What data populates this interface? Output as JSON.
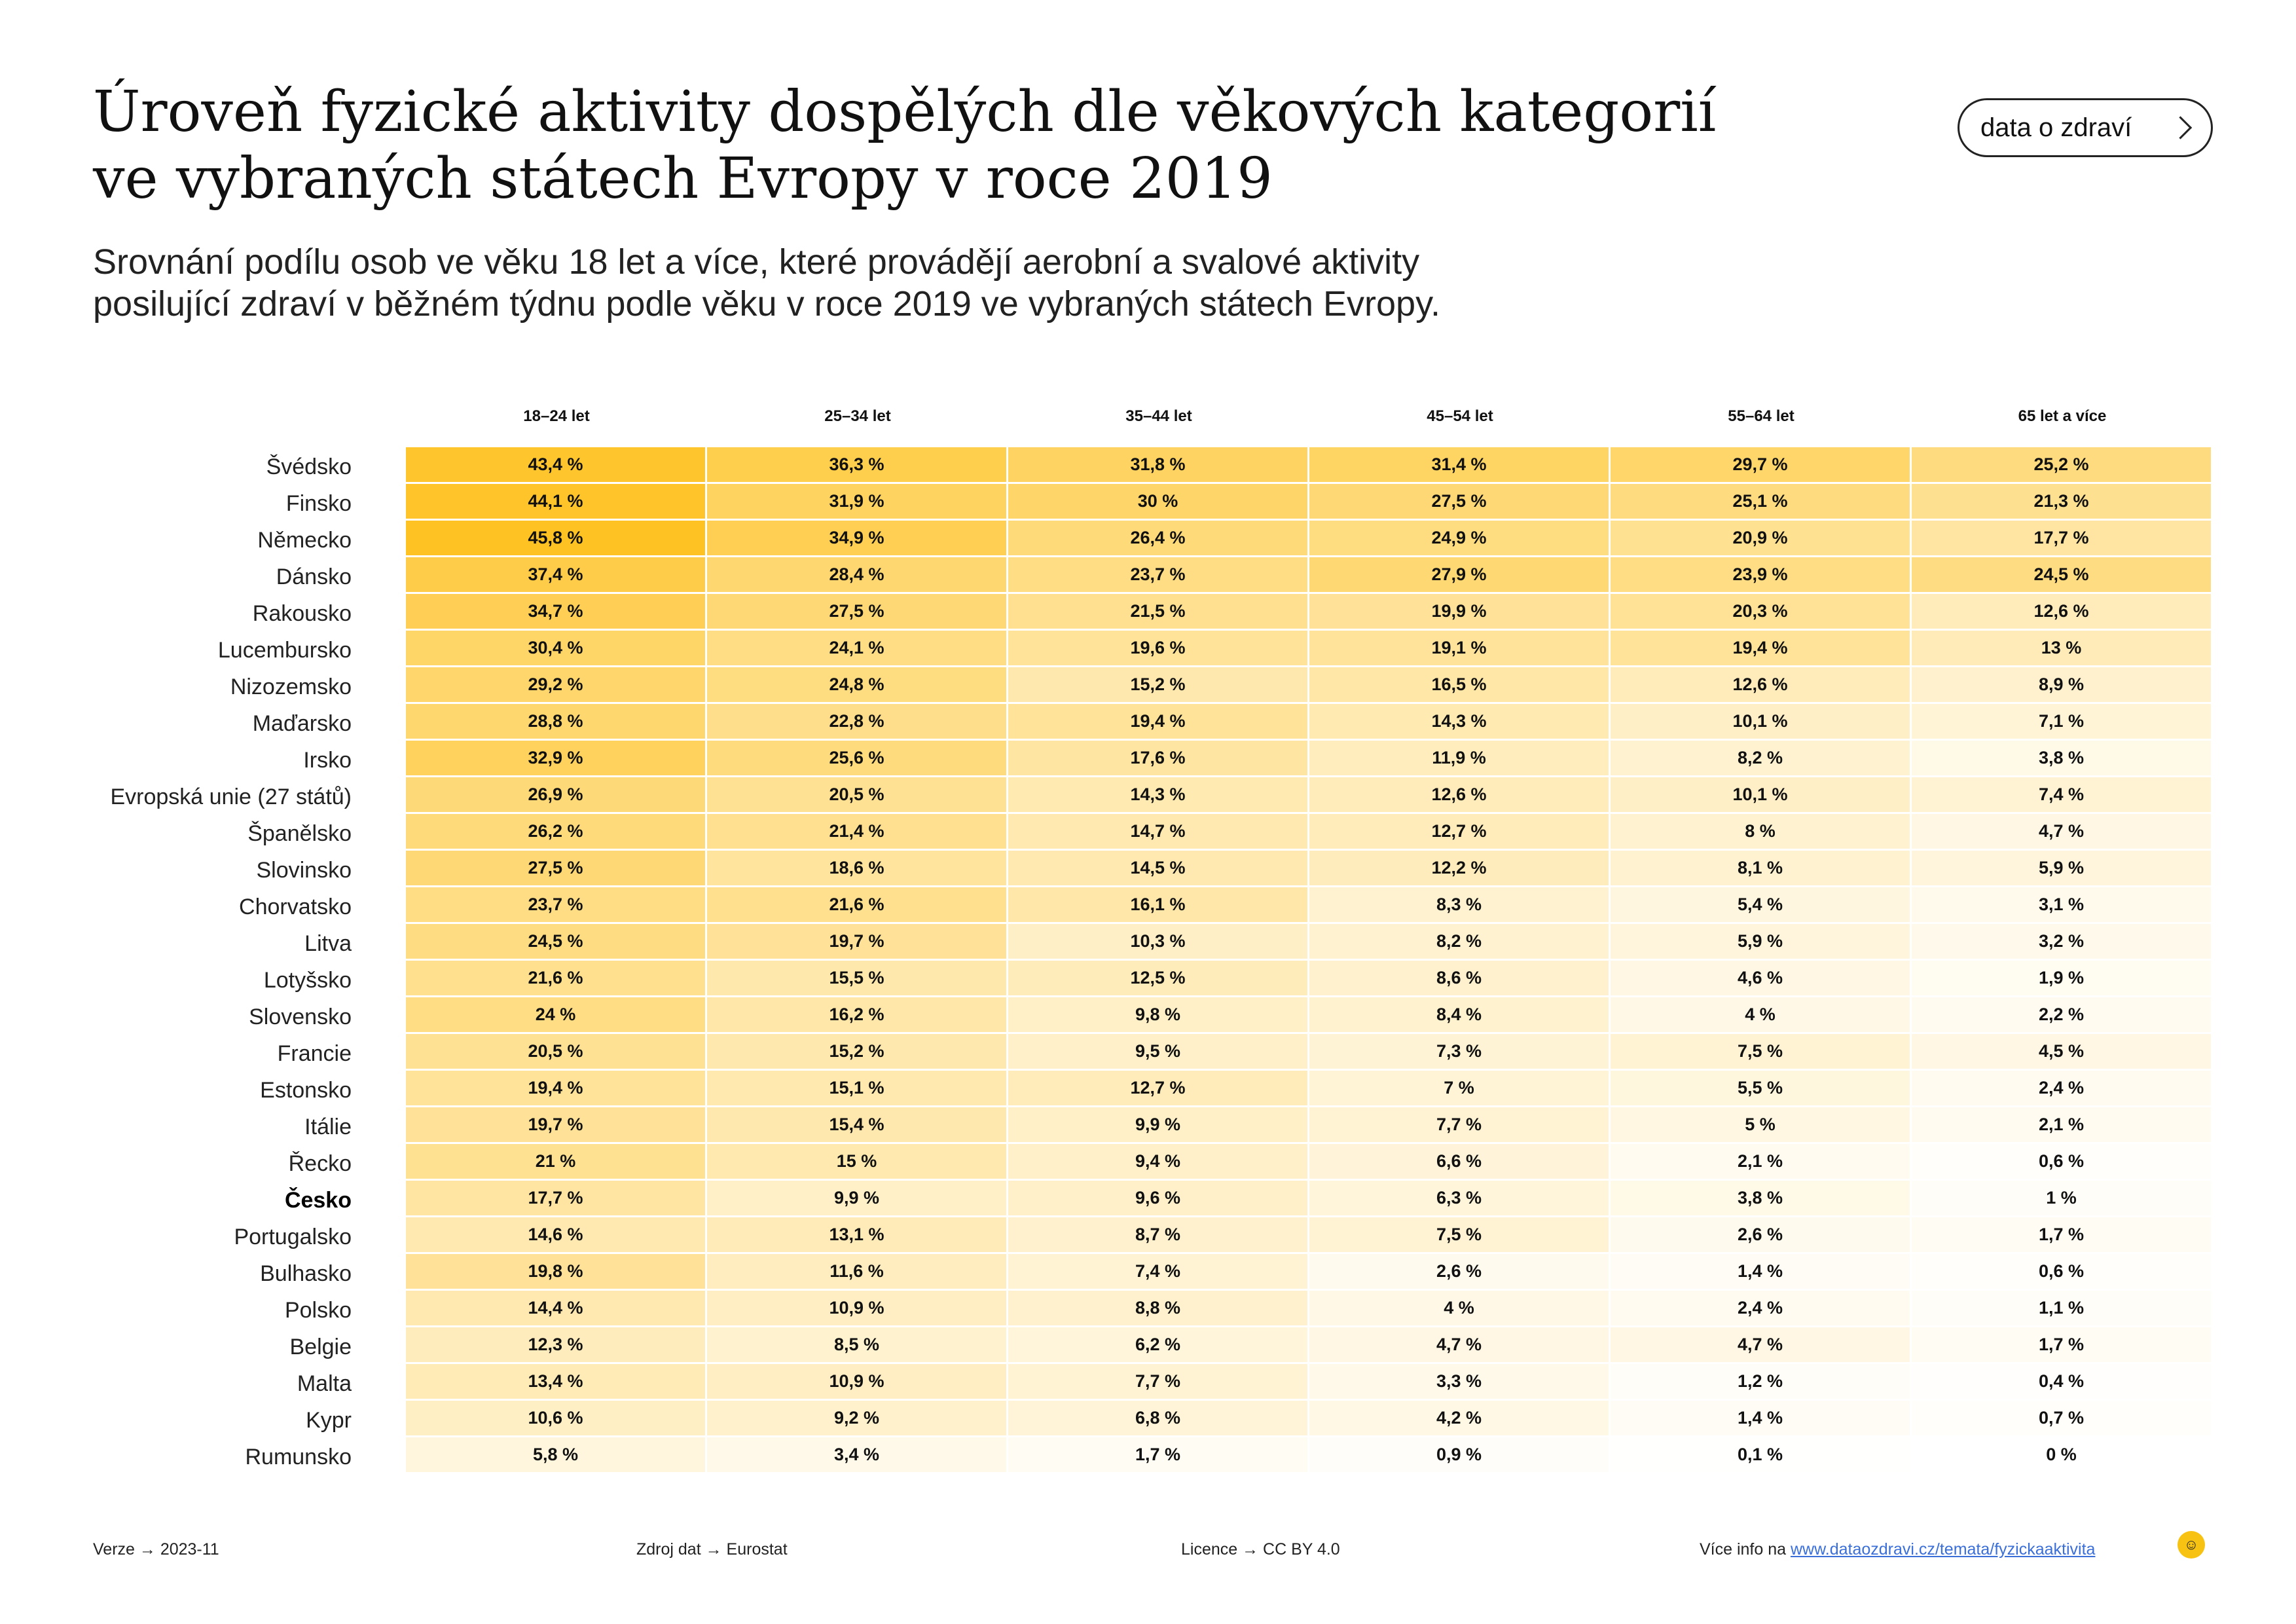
{
  "header": {
    "title_lines": [
      "Úroveň fyzické aktivity dospělých dle věkových kategorií",
      "ve vybraných státech Evropy v roce 2019"
    ],
    "subtitle_lines": [
      "Srovnání podílu osob ve věku 18 let a více, které provádějí aerobní a svalové aktivity",
      "posilující zdraví v běžném týdnu podle věku v roce 2019 ve vybraných státech Evropy."
    ],
    "badge_label": "data o zdraví",
    "badge_icon": "chevron-right-icon"
  },
  "chart_data": {
    "type": "heatmap",
    "title": "Úroveň fyzické aktivity dospělých dle věkových kategorií ve vybraných státech Evropy v roce 2019",
    "columns": [
      "18–24 let",
      "25–34 let",
      "35–44 let",
      "45–54 let",
      "55–64 let",
      "65 let a více"
    ],
    "unit": "%",
    "highlight_row": "Česko",
    "color_scale": {
      "low": "#ffffff",
      "high": "#fec223"
    },
    "rows": [
      {
        "label": "Švédsko",
        "values": [
          43.4,
          36.3,
          31.8,
          31.4,
          29.7,
          25.2
        ],
        "texts": [
          "43,4 %",
          "36,3 %",
          "31,8 %",
          "31,4 %",
          "29,7 %",
          "25,2 %"
        ]
      },
      {
        "label": "Finsko",
        "values": [
          44.1,
          31.9,
          30,
          27.5,
          25.1,
          21.3
        ],
        "texts": [
          "44,1 %",
          "31,9 %",
          "30 %",
          "27,5 %",
          "25,1 %",
          "21,3 %"
        ]
      },
      {
        "label": "Německo",
        "values": [
          45.8,
          34.9,
          26.4,
          24.9,
          20.9,
          17.7
        ],
        "texts": [
          "45,8 %",
          "34,9 %",
          "26,4 %",
          "24,9 %",
          "20,9 %",
          "17,7 %"
        ]
      },
      {
        "label": "Dánsko",
        "values": [
          37.4,
          28.4,
          23.7,
          27.9,
          23.9,
          24.5
        ],
        "texts": [
          "37,4 %",
          "28,4 %",
          "23,7 %",
          "27,9 %",
          "23,9 %",
          "24,5 %"
        ]
      },
      {
        "label": "Rakousko",
        "values": [
          34.7,
          27.5,
          21.5,
          19.9,
          20.3,
          12.6
        ],
        "texts": [
          "34,7 %",
          "27,5 %",
          "21,5 %",
          "19,9 %",
          "20,3 %",
          "12,6 %"
        ]
      },
      {
        "label": "Lucembursko",
        "values": [
          30.4,
          24.1,
          19.6,
          19.1,
          19.4,
          13
        ],
        "texts": [
          "30,4 %",
          "24,1 %",
          "19,6 %",
          "19,1 %",
          "19,4 %",
          "13 %"
        ]
      },
      {
        "label": "Nizozemsko",
        "values": [
          29.2,
          24.8,
          15.2,
          16.5,
          12.6,
          8.9
        ],
        "texts": [
          "29,2 %",
          "24,8 %",
          "15,2 %",
          "16,5 %",
          "12,6 %",
          "8,9 %"
        ]
      },
      {
        "label": "Maďarsko",
        "values": [
          28.8,
          22.8,
          19.4,
          14.3,
          10.1,
          7.1
        ],
        "texts": [
          "28,8 %",
          "22,8 %",
          "19,4 %",
          "14,3 %",
          "10,1 %",
          "7,1 %"
        ]
      },
      {
        "label": "Irsko",
        "values": [
          32.9,
          25.6,
          17.6,
          11.9,
          8.2,
          3.8
        ],
        "texts": [
          "32,9 %",
          "25,6 %",
          "17,6 %",
          "11,9 %",
          "8,2 %",
          "3,8 %"
        ]
      },
      {
        "label": "Evropská unie (27 států)",
        "values": [
          26.9,
          20.5,
          14.3,
          12.6,
          10.1,
          7.4
        ],
        "texts": [
          "26,9 %",
          "20,5 %",
          "14,3 %",
          "12,6 %",
          "10,1 %",
          "7,4 %"
        ]
      },
      {
        "label": "Španělsko",
        "values": [
          26.2,
          21.4,
          14.7,
          12.7,
          8,
          4.7
        ],
        "texts": [
          "26,2 %",
          "21,4 %",
          "14,7 %",
          "12,7 %",
          "8 %",
          "4,7 %"
        ]
      },
      {
        "label": "Slovinsko",
        "values": [
          27.5,
          18.6,
          14.5,
          12.2,
          8.1,
          5.9
        ],
        "texts": [
          "27,5 %",
          "18,6 %",
          "14,5 %",
          "12,2 %",
          "8,1 %",
          "5,9 %"
        ]
      },
      {
        "label": "Chorvatsko",
        "values": [
          23.7,
          21.6,
          16.1,
          8.3,
          5.4,
          3.1
        ],
        "texts": [
          "23,7 %",
          "21,6 %",
          "16,1 %",
          "8,3 %",
          "5,4 %",
          "3,1 %"
        ]
      },
      {
        "label": "Litva",
        "values": [
          24.5,
          19.7,
          10.3,
          8.2,
          5.9,
          3.2
        ],
        "texts": [
          "24,5 %",
          "19,7 %",
          "10,3 %",
          "8,2 %",
          "5,9 %",
          "3,2 %"
        ]
      },
      {
        "label": "Lotyšsko",
        "values": [
          21.6,
          15.5,
          12.5,
          8.6,
          4.6,
          1.9
        ],
        "texts": [
          "21,6 %",
          "15,5 %",
          "12,5 %",
          "8,6 %",
          "4,6 %",
          "1,9 %"
        ]
      },
      {
        "label": "Slovensko",
        "values": [
          24,
          16.2,
          9.8,
          8.4,
          4,
          2.2
        ],
        "texts": [
          "24 %",
          "16,2 %",
          "9,8 %",
          "8,4 %",
          "4 %",
          "2,2 %"
        ]
      },
      {
        "label": "Francie",
        "values": [
          20.5,
          15.2,
          9.5,
          7.3,
          7.5,
          4.5
        ],
        "texts": [
          "20,5 %",
          "15,2 %",
          "9,5 %",
          "7,3 %",
          "7,5 %",
          "4,5 %"
        ]
      },
      {
        "label": "Estonsko",
        "values": [
          19.4,
          15.1,
          12.7,
          7,
          5.5,
          2.4
        ],
        "texts": [
          "19,4 %",
          "15,1 %",
          "12,7 %",
          "7 %",
          "5,5 %",
          "2,4 %"
        ]
      },
      {
        "label": "Itálie",
        "values": [
          19.7,
          15.4,
          9.9,
          7.7,
          5,
          2.1
        ],
        "texts": [
          "19,7 %",
          "15,4 %",
          "9,9 %",
          "7,7 %",
          "5 %",
          "2,1 %"
        ]
      },
      {
        "label": "Řecko",
        "values": [
          21,
          15,
          9.4,
          6.6,
          2.1,
          0.6
        ],
        "texts": [
          "21 %",
          "15 %",
          "9,4 %",
          "6,6 %",
          "2,1 %",
          "0,6 %"
        ]
      },
      {
        "label": "Česko",
        "values": [
          17.7,
          9.9,
          9.6,
          6.3,
          3.8,
          1
        ],
        "texts": [
          "17,7 %",
          "9,9 %",
          "9,6 %",
          "6,3 %",
          "3,8 %",
          "1 %"
        ]
      },
      {
        "label": "Portugalsko",
        "values": [
          14.6,
          13.1,
          8.7,
          7.5,
          2.6,
          1.7
        ],
        "texts": [
          "14,6 %",
          "13,1 %",
          "8,7 %",
          "7,5 %",
          "2,6 %",
          "1,7 %"
        ]
      },
      {
        "label": "Bulhasko",
        "values": [
          19.8,
          11.6,
          7.4,
          2.6,
          1.4,
          0.6
        ],
        "texts": [
          "19,8 %",
          "11,6 %",
          "7,4 %",
          "2,6 %",
          "1,4 %",
          "0,6 %"
        ]
      },
      {
        "label": "Polsko",
        "values": [
          14.4,
          10.9,
          8.8,
          4,
          2.4,
          1.1
        ],
        "texts": [
          "14,4 %",
          "10,9 %",
          "8,8 %",
          "4 %",
          "2,4 %",
          "1,1 %"
        ]
      },
      {
        "label": "Belgie",
        "values": [
          12.3,
          8.5,
          6.2,
          4.7,
          4.7,
          1.7
        ],
        "texts": [
          "12,3 %",
          "8,5 %",
          "6,2 %",
          "4,7 %",
          "4,7 %",
          "1,7 %"
        ]
      },
      {
        "label": "Malta",
        "values": [
          13.4,
          10.9,
          7.7,
          3.3,
          1.2,
          0.4
        ],
        "texts": [
          "13,4 %",
          "10,9 %",
          "7,7 %",
          "3,3 %",
          "1,2 %",
          "0,4 %"
        ]
      },
      {
        "label": "Kypr",
        "values": [
          10.6,
          9.2,
          6.8,
          4.2,
          1.4,
          0.7
        ],
        "texts": [
          "10,6 %",
          "9,2 %",
          "6,8 %",
          "4,2 %",
          "1,4 %",
          "0,7 %"
        ]
      },
      {
        "label": "Rumunsko",
        "values": [
          5.8,
          3.4,
          1.7,
          0.9,
          0.1,
          0
        ],
        "texts": [
          "5,8 %",
          "3,4 %",
          "1,7 %",
          "0,9 %",
          "0,1 %",
          "0 %"
        ]
      }
    ]
  },
  "footer": {
    "version": "Verze → 2023-11",
    "source": "Zdroj dat → Eurostat",
    "license": "Licence → CC BY 4.0",
    "more_prefix": "Více info na",
    "more_link": "www.dataozdravi.cz/temata/fyzickaaktivita",
    "logo_icon": "dataozdravi-logo-icon"
  }
}
